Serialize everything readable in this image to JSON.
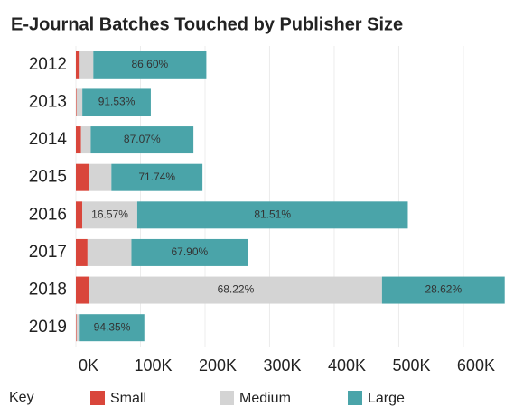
{
  "chart_data": {
    "type": "stacked_bar_horizontal",
    "title": "E-Journal Batches Touched by Publisher Size",
    "categories": [
      "2012",
      "2013",
      "2014",
      "2015",
      "2016",
      "2017",
      "2018",
      "2019"
    ],
    "series": [
      {
        "name": "Small",
        "color": "#d9463b",
        "values": [
          6000,
          1000,
          8000,
          20000,
          10000,
          18000,
          21000,
          1000
        ],
        "labels": [
          null,
          null,
          null,
          null,
          null,
          null,
          null,
          null
        ]
      },
      {
        "name": "Medium",
        "color": "#d4d4d4",
        "values": [
          21000,
          9000,
          15000,
          35000,
          85000,
          68000,
          453000,
          5000
        ],
        "labels": [
          null,
          null,
          null,
          null,
          "16.57%",
          null,
          "68.22%",
          null
        ]
      },
      {
        "name": "Large",
        "color": "#4aa4a9",
        "values": [
          175000,
          106000,
          159000,
          141000,
          419000,
          180000,
          190000,
          100000
        ],
        "labels": [
          "86.60%",
          "91.53%",
          "87.07%",
          "71.74%",
          "81.51%",
          "67.90%",
          "28.62%",
          "94.35%"
        ]
      }
    ],
    "xlim": [
      0,
      670000
    ],
    "xticks": [
      {
        "value": 0,
        "label": "0K"
      },
      {
        "value": 100000,
        "label": "100K"
      },
      {
        "value": 200000,
        "label": "200K"
      },
      {
        "value": 300000,
        "label": "300K"
      },
      {
        "value": 400000,
        "label": "400K"
      },
      {
        "value": 500000,
        "label": "500K"
      },
      {
        "value": 600000,
        "label": "600K"
      }
    ],
    "grid": true,
    "legend_title": "Key",
    "legend": "bottom"
  }
}
